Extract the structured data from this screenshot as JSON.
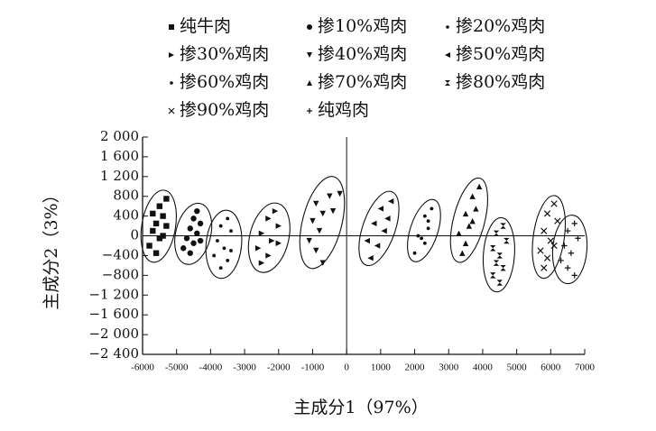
{
  "chart_data": {
    "type": "scatter",
    "xlabel": "主成分1（97%）",
    "ylabel": "主成分2（3%）",
    "xlim": [
      -6000,
      7000
    ],
    "ylim": [
      -2400,
      2000
    ],
    "xticks": [
      -6000,
      -5000,
      -4000,
      -3000,
      -2000,
      -1000,
      0,
      1000,
      2000,
      3000,
      4000,
      5000,
      6000,
      7000
    ],
    "yticks": [
      {
        "value": 2000,
        "label": "2 000"
      },
      {
        "value": 1600,
        "label": "1 600"
      },
      {
        "value": 1200,
        "label": "1 200"
      },
      800,
      400,
      0,
      {
        "value": -400,
        "label": "−400"
      },
      {
        "value": -800,
        "label": "−800"
      },
      {
        "value": -1200,
        "label": "−1 200"
      },
      {
        "value": -1600,
        "label": "−1 600"
      },
      {
        "value": -2000,
        "label": "−2 000"
      },
      {
        "value": -2400,
        "label": "−2 400"
      }
    ],
    "color": "#111111",
    "ellipses": true,
    "series": [
      {
        "name": "纯牛肉",
        "marker": "square",
        "x": [
          -5300,
          -5500,
          -5700,
          -5400,
          -5600,
          -5300,
          -5700,
          -5500,
          -5800,
          -5600,
          -5400
        ],
        "y": [
          750,
          600,
          450,
          400,
          250,
          200,
          100,
          -50,
          -200,
          -350,
          0
        ]
      },
      {
        "name": "掺10%鸡肉",
        "marker": "circle",
        "x": [
          -4400,
          -4500,
          -4300,
          -4600,
          -4400,
          -4700,
          -4500,
          -4800,
          -4600,
          -4300
        ],
        "y": [
          500,
          350,
          250,
          150,
          50,
          -50,
          -150,
          -250,
          -350,
          -100
        ]
      },
      {
        "name": "掺20%鸡肉",
        "marker": "dot",
        "x": [
          -3500,
          -3700,
          -3400,
          -3800,
          -3600,
          -3900,
          -3500,
          -3700,
          -3400
        ],
        "y": [
          350,
          200,
          100,
          -100,
          -250,
          -400,
          -500,
          -650,
          -300
        ]
      },
      {
        "name": "掺30%鸡肉",
        "marker": "triangle-right",
        "x": [
          -2100,
          -2300,
          -2000,
          -2500,
          -2200,
          -2600,
          -2300,
          -2500,
          -2000
        ],
        "y": [
          500,
          350,
          200,
          50,
          -100,
          -250,
          -400,
          -550,
          -150
        ]
      },
      {
        "name": "掺40%鸡肉",
        "marker": "triangle-down",
        "x": [
          -200,
          -500,
          -900,
          -700,
          -1000,
          -800,
          -1100,
          -900,
          -700,
          -400
        ],
        "y": [
          850,
          800,
          650,
          450,
          300,
          100,
          -100,
          -300,
          -550,
          500
        ]
      },
      {
        "name": "掺50%鸡肉",
        "marker": "triangle-left",
        "x": [
          1300,
          1000,
          1200,
          800,
          1100,
          600,
          900,
          700
        ],
        "y": [
          700,
          550,
          350,
          250,
          100,
          -100,
          -200,
          -450
        ]
      },
      {
        "name": "掺60%鸡肉",
        "marker": "dot",
        "x": [
          2500,
          2300,
          2400,
          2100,
          2300,
          2000,
          2200,
          2400
        ],
        "y": [
          550,
          400,
          150,
          0,
          -150,
          -350,
          -50,
          300
        ]
      },
      {
        "name": "掺70%鸡肉",
        "marker": "triangle-up",
        "x": [
          3900,
          3700,
          3800,
          3500,
          3600,
          3300,
          3500,
          3400,
          3700
        ],
        "y": [
          1000,
          800,
          550,
          450,
          200,
          50,
          -150,
          -350,
          300
        ]
      },
      {
        "name": "掺80%鸡肉",
        "marker": "bowtie",
        "x": [
          4600,
          4400,
          4700,
          4300,
          4500,
          4400,
          4600,
          4300,
          4500
        ],
        "y": [
          200,
          50,
          -100,
          -250,
          -400,
          -550,
          -650,
          -800,
          -950
        ]
      },
      {
        "name": "掺90%鸡肉",
        "marker": "x",
        "x": [
          6100,
          5900,
          6200,
          5800,
          6000,
          5700,
          5900,
          6100,
          5800
        ],
        "y": [
          650,
          450,
          300,
          100,
          -100,
          -300,
          -450,
          -200,
          -650
        ]
      },
      {
        "name": "纯鸡肉",
        "marker": "plus",
        "x": [
          6700,
          6500,
          6800,
          6400,
          6600,
          6300,
          6500,
          6700
        ],
        "y": [
          250,
          100,
          -50,
          -200,
          -350,
          -500,
          -650,
          -800
        ]
      }
    ]
  }
}
